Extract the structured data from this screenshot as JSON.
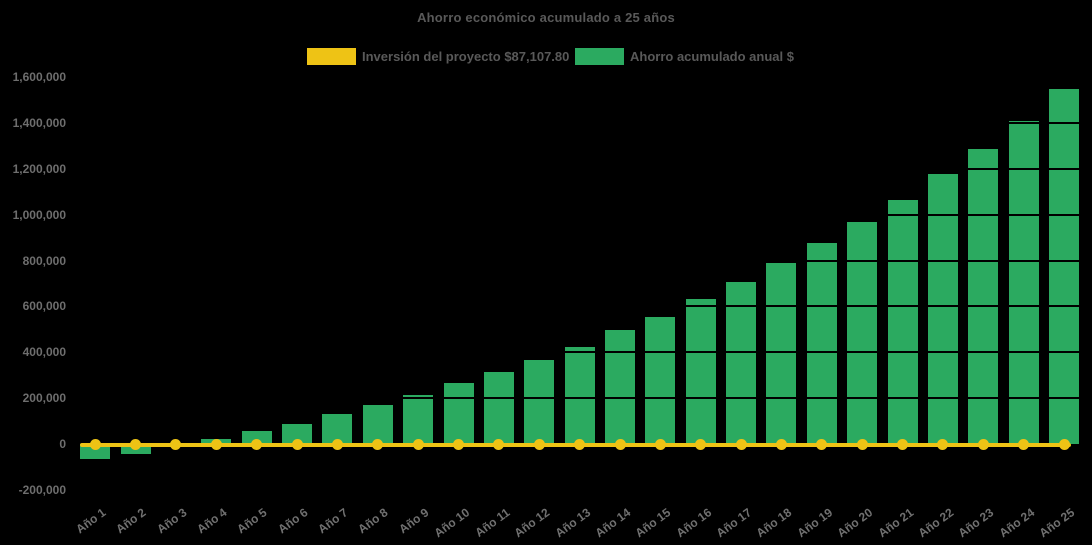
{
  "chart_data": {
    "type": "bar",
    "title": "Ahorro económico acumulado a 25 años",
    "categories": [
      "Año 1",
      "Año 2",
      "Año 3",
      "Año 4",
      "Año 5",
      "Año 6",
      "Año 7",
      "Año 8",
      "Año 9",
      "Año 10",
      "Año 11",
      "Año 12",
      "Año 13",
      "Año 14",
      "Año 15",
      "Año 16",
      "Año 17",
      "Año 18",
      "Año 19",
      "Año 20",
      "Año 21",
      "Año 22",
      "Año 23",
      "Año 24",
      "Año 25"
    ],
    "series": [
      {
        "name": "Inversión del proyecto $87,107.80",
        "type": "line",
        "color": "#EEC315",
        "values": [
          0,
          0,
          0,
          0,
          0,
          0,
          0,
          0,
          0,
          0,
          0,
          0,
          0,
          0,
          0,
          0,
          0,
          0,
          0,
          0,
          0,
          0,
          0,
          0,
          0
        ]
      },
      {
        "name": "Ahorro acumulado anual $",
        "type": "bar",
        "color": "#2BAA60",
        "values": [
          -65000,
          -45000,
          2000,
          22000,
          58000,
          87000,
          130000,
          172000,
          214000,
          267000,
          313000,
          366000,
          424000,
          497000,
          555000,
          630000,
          708000,
          790000,
          878000,
          969000,
          1065000,
          1176000,
          1288000,
          1410000,
          1548000
        ]
      }
    ],
    "xlabel": "",
    "ylabel": "",
    "ylim": [
      -200000,
      1600000
    ],
    "ytick_step": 200000,
    "ytick_labels": [
      "-200,000",
      "0",
      "200,000",
      "400,000",
      "600,000",
      "800,000",
      "1,000,000",
      "1,200,000",
      "1,400,000",
      "1,600,000"
    ],
    "grid": "faint-horizontal-over-bars",
    "legend_position": "top-center",
    "background_color": "#000000",
    "title_color": "#595959",
    "tick_color": "#6E6E6E"
  }
}
